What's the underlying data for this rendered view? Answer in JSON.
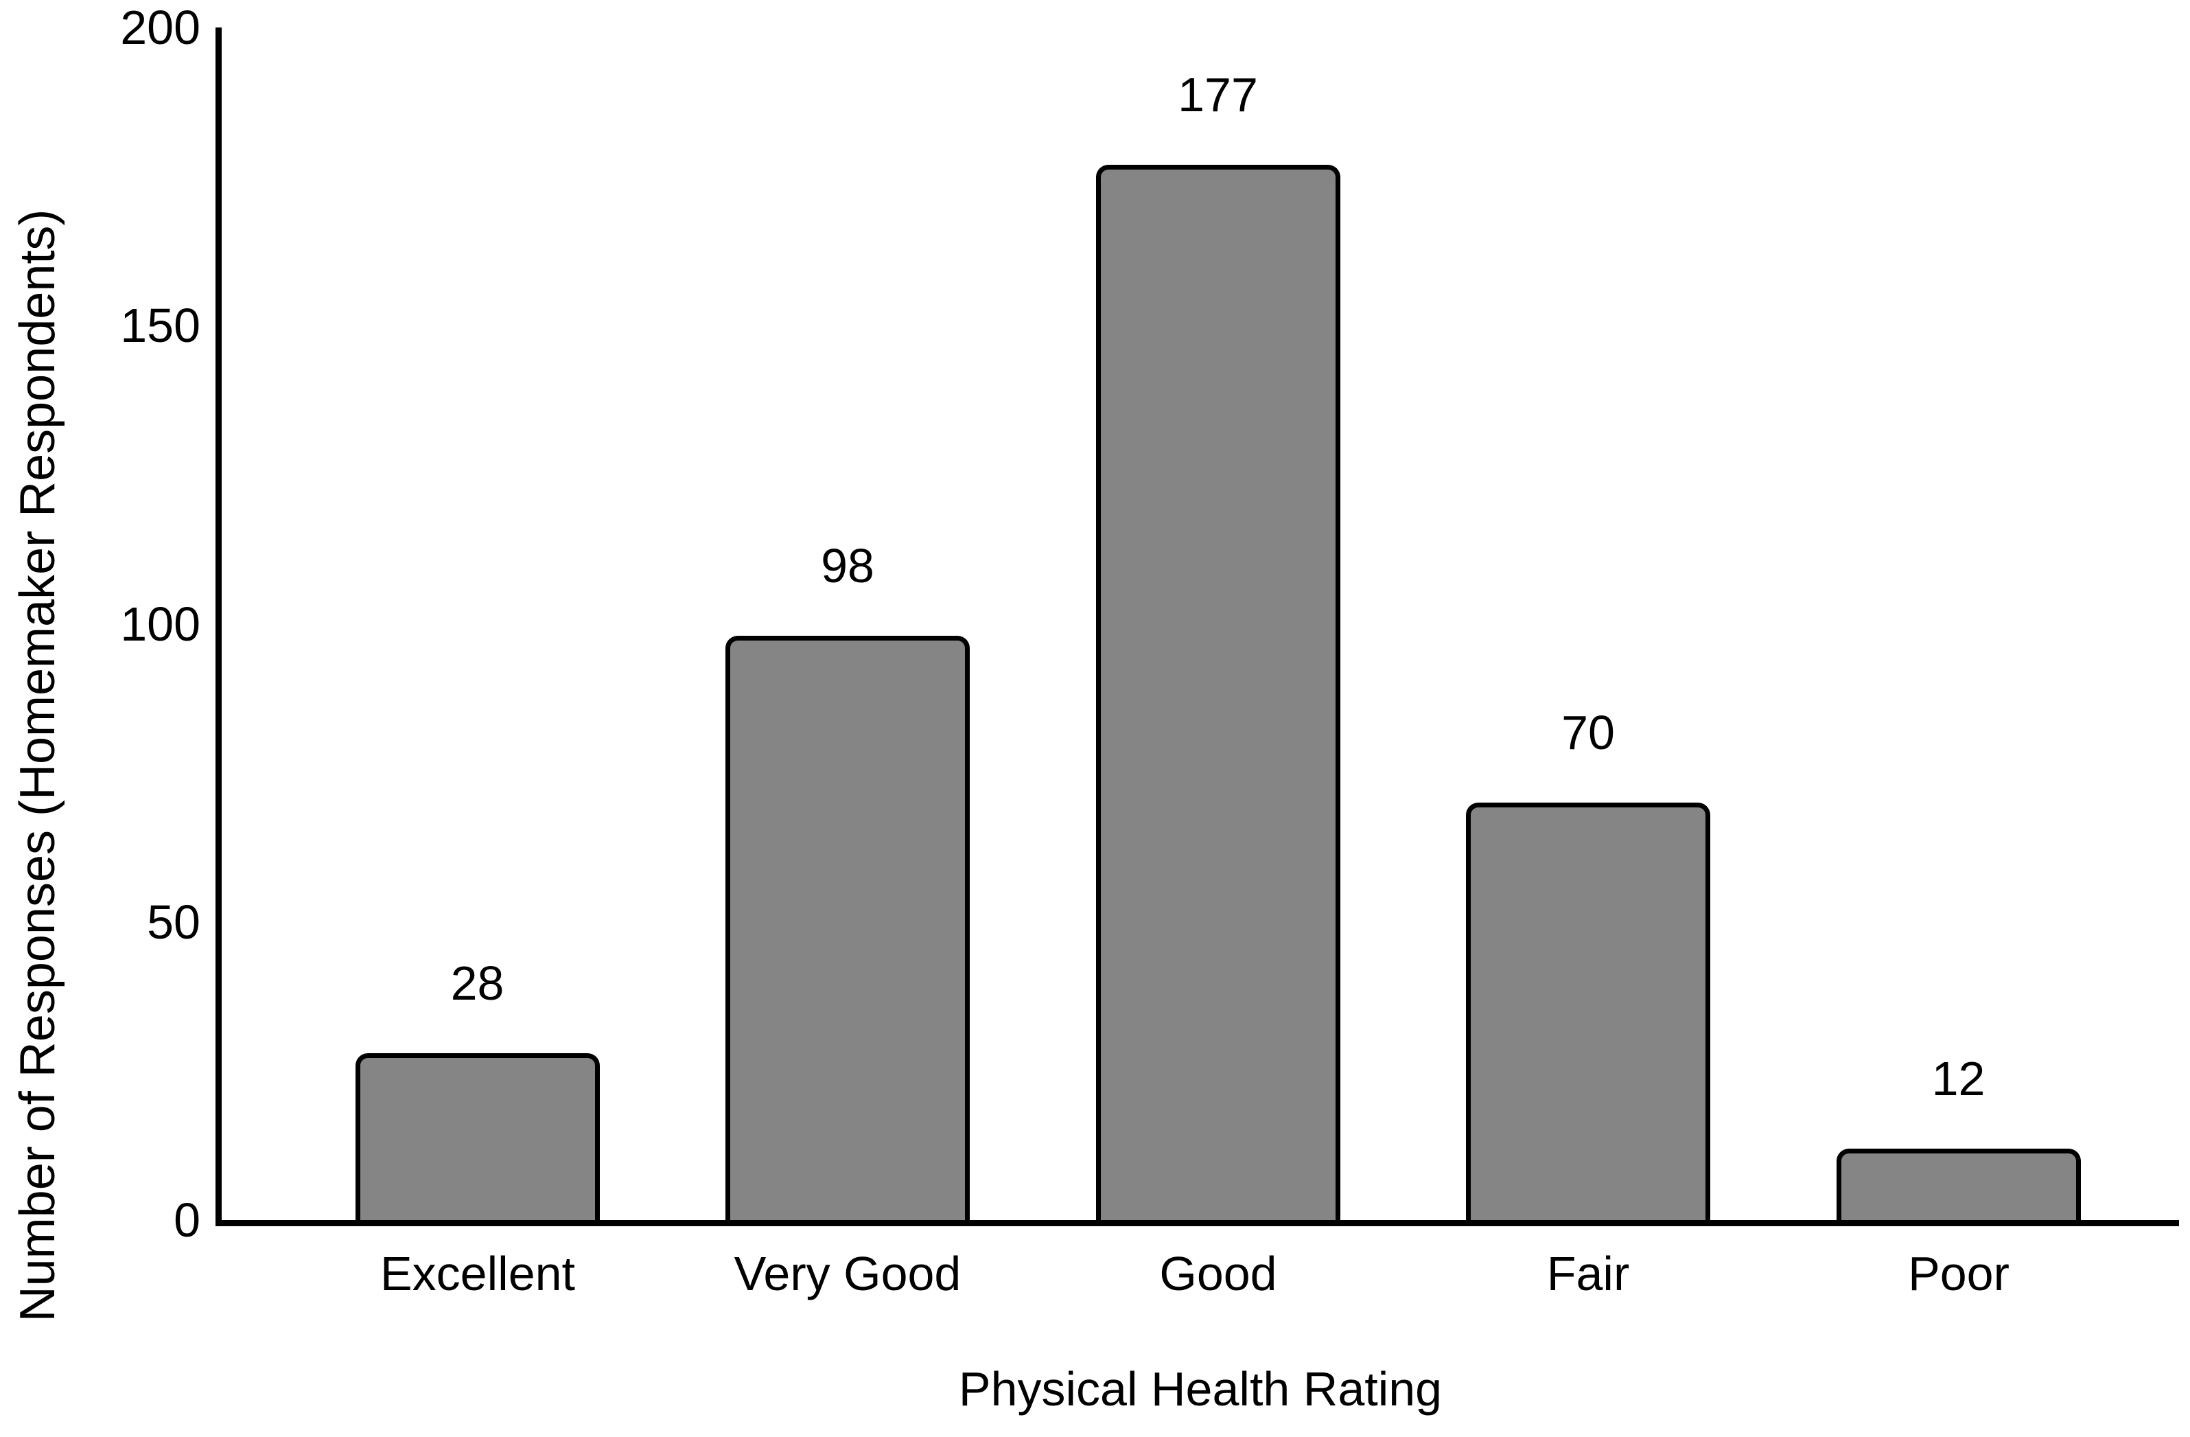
{
  "figure": {
    "y_axis_label": "Number of Responses (Homemaker Respondents)",
    "x_axis_label": "Physical Health Rating"
  },
  "chart_data": {
    "type": "bar",
    "categories": [
      "Excellent",
      "Very Good",
      "Good",
      "Fair",
      "Poor"
    ],
    "values": [
      28,
      98,
      177,
      70,
      12
    ],
    "data_labels": [
      28,
      98,
      177,
      70,
      12
    ],
    "title": "",
    "xlabel": "Physical Health Rating",
    "ylabel": "Number of Responses (Homemaker Respondents)",
    "ylim": [
      0,
      200
    ],
    "yticks": [
      0,
      50,
      100,
      150,
      200
    ],
    "grid": false,
    "legend": false,
    "colors": {
      "bar_fill": "#858585",
      "bar_border": "#000000",
      "axis": "#000000",
      "text": "#000000",
      "background": "#ffffff"
    }
  }
}
